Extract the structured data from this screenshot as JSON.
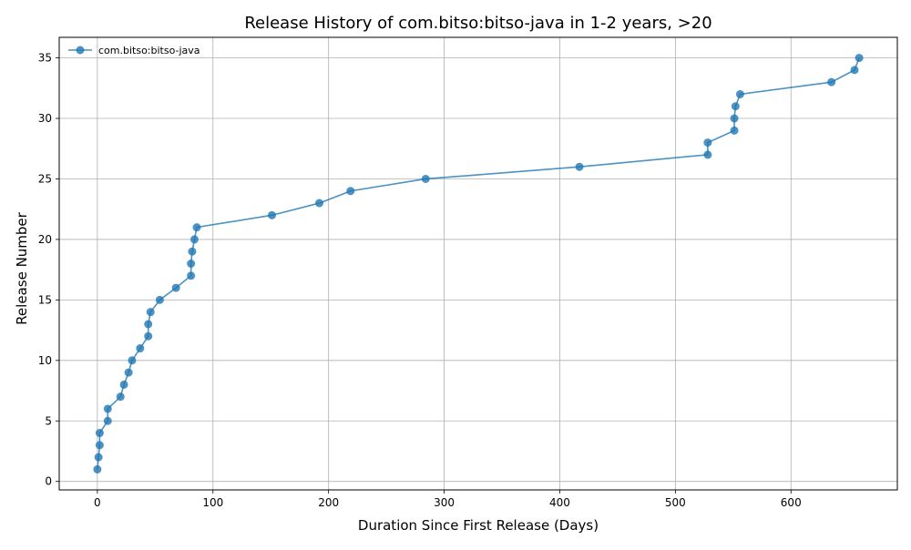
{
  "chart_data": {
    "type": "line",
    "title": "Release History of com.bitso:bitso-java in 1-2 years, >20",
    "xlabel": "Duration Since First Release (Days)",
    "ylabel": "Release Number",
    "xlim": [
      -33,
      692
    ],
    "ylim": [
      -0.7,
      36.7
    ],
    "xticks": [
      0,
      100,
      200,
      300,
      400,
      500,
      600
    ],
    "yticks": [
      0,
      5,
      10,
      15,
      20,
      25,
      30,
      35
    ],
    "grid": true,
    "legend_position": "top-left",
    "series": [
      {
        "name": "com.bitso:bitso-java",
        "color": "#1f77b4",
        "marker": "circle",
        "x": [
          0,
          1,
          2,
          2,
          9,
          9,
          20,
          23,
          27,
          30,
          37,
          44,
          44,
          46,
          54,
          68,
          81,
          81,
          82,
          84,
          86,
          151,
          192,
          219,
          284,
          417,
          528,
          528,
          551,
          551,
          552,
          556,
          635,
          655,
          659
        ],
        "y": [
          1,
          2,
          3,
          4,
          5,
          6,
          7,
          8,
          9,
          10,
          11,
          12,
          13,
          14,
          15,
          16,
          17,
          18,
          19,
          20,
          21,
          22,
          23,
          24,
          25,
          26,
          27,
          28,
          29,
          30,
          31,
          32,
          33,
          34,
          35
        ]
      }
    ]
  }
}
